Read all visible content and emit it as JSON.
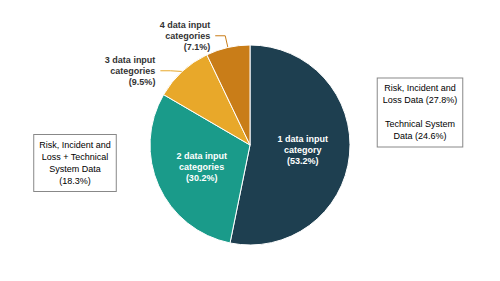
{
  "chart_data": {
    "type": "pie",
    "categories": [
      "1 data input\ncategory\n(53.2%)",
      "2 data input\ncategories\n(30.2%)",
      "3 data input\ncategories\n(9.5%)",
      "4 data input\ncategories\n(7.1%)"
    ],
    "values": [
      53.2,
      30.2,
      9.5,
      7.1
    ],
    "colors": [
      "#1e3f50",
      "#1a9b8a",
      "#e8a82a",
      "#c97d18"
    ],
    "annotations": [
      "Risk, Incident and\nLoss + Technical\nSystem Data\n(18.3%)",
      "Risk, Incident and\nLoss Data (27.8%)\n\nTechnical System\nData (24.6%)"
    ]
  }
}
